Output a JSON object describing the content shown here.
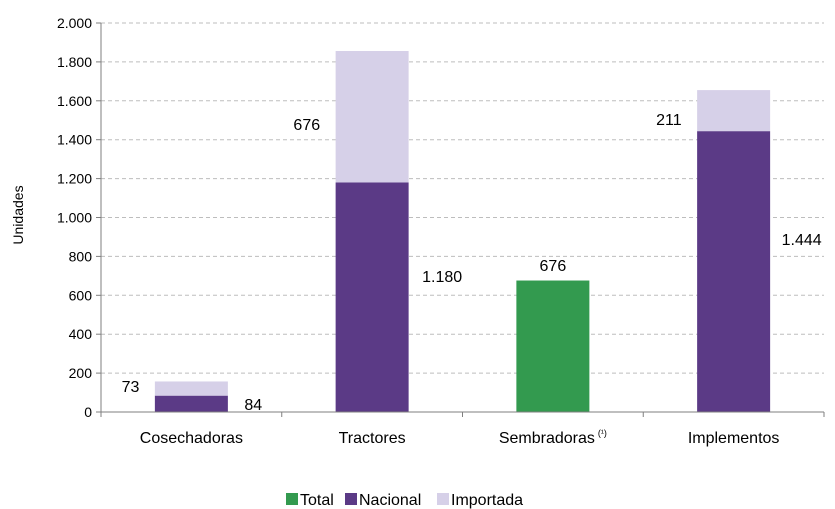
{
  "chart_data": {
    "type": "bar",
    "stacked": true,
    "categories": [
      "Cosechadoras",
      "Tractores",
      "Sembradoras",
      "Implementos"
    ],
    "category_superscripts": [
      "",
      "",
      "(¹)",
      ""
    ],
    "ylabel": "Unidades",
    "ylim": [
      0,
      2000
    ],
    "yticks": [
      0,
      200,
      400,
      600,
      800,
      1000,
      1200,
      1400,
      1600,
      1800,
      2000
    ],
    "ytick_labels": [
      "0",
      "200",
      "400",
      "600",
      "800",
      "1.000",
      "1.200",
      "1.400",
      "1.600",
      "1.800",
      "2.000"
    ],
    "grid": "horizontal-dashed",
    "legend_position": "bottom",
    "series": [
      {
        "name": "Total",
        "color": "#339a4f",
        "values": [
          null,
          null,
          676,
          null
        ],
        "labels": [
          "",
          "",
          "676",
          ""
        ]
      },
      {
        "name": "Nacional",
        "color": "#5b3a86",
        "values": [
          84,
          1180,
          null,
          1444
        ],
        "labels": [
          "84",
          "1.180",
          "",
          "1.444"
        ]
      },
      {
        "name": "Importada",
        "color": "#d6d0e8",
        "values": [
          73,
          676,
          null,
          211
        ],
        "labels": [
          "73",
          "676",
          "",
          "211"
        ]
      }
    ]
  }
}
